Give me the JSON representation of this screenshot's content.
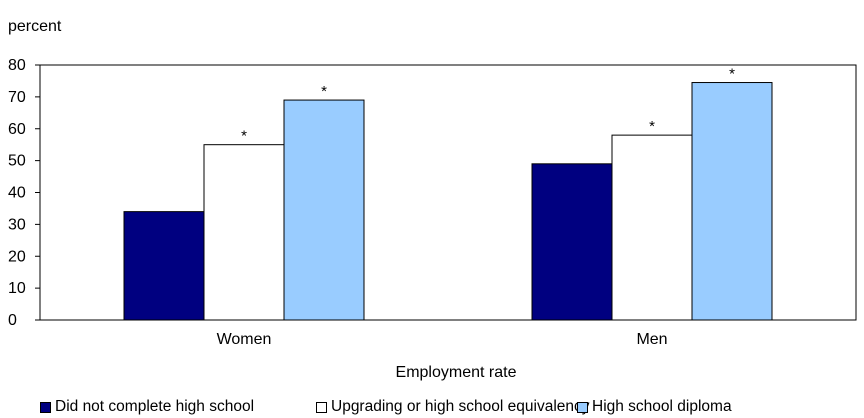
{
  "chart_data": {
    "type": "bar",
    "ylabel": "percent",
    "xlabel": "Employment rate",
    "categories": [
      "Women",
      "Men"
    ],
    "ylim": [
      0,
      80
    ],
    "yticks": [
      0,
      10,
      20,
      30,
      40,
      50,
      60,
      70,
      80
    ],
    "grid": false,
    "legend_position": "bottom",
    "series": [
      {
        "name": "Did not complete high school",
        "color": "#000080",
        "values": [
          34,
          49
        ],
        "markers": [
          "",
          ""
        ]
      },
      {
        "name": "Upgrading or high school equivalency",
        "color": "#ffffff",
        "values": [
          55,
          58
        ],
        "markers": [
          "*",
          "*"
        ]
      },
      {
        "name": "High school diploma",
        "color": "#99ccff",
        "values": [
          69,
          74.5
        ],
        "markers": [
          "*",
          "*"
        ]
      }
    ]
  }
}
